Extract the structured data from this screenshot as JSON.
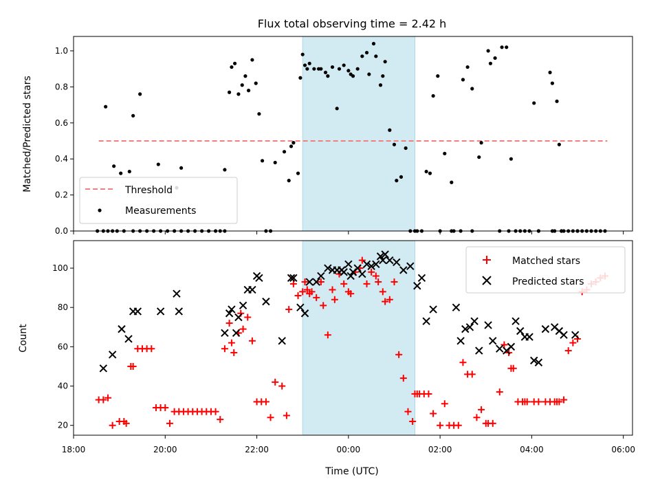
{
  "chart_data": [
    {
      "type": "scatter",
      "panel": "top",
      "title": "Flux total observing time = 2.42 h",
      "ylabel": "Matched/Predicted stars",
      "xlim": [
        18.0,
        30.2
      ],
      "ylim": [
        0.0,
        1.08
      ],
      "yticks": [
        0.0,
        0.2,
        0.4,
        0.6,
        0.8,
        1.0
      ],
      "ytick_labels": [
        "0.0",
        "0.2",
        "0.4",
        "0.6",
        "0.8",
        "1.0"
      ],
      "highlight_span": [
        23.0,
        25.45
      ],
      "highlight_color": "#add8e6",
      "legend_position": "lower-left",
      "threshold": {
        "name": "Threshold",
        "y": 0.5,
        "x": [
          18.55,
          29.65
        ],
        "color": "#f08080"
      },
      "series": [
        {
          "name": "Measurements",
          "color": "#000000",
          "x": [
            18.52,
            18.65,
            18.75,
            18.85,
            18.95,
            19.1,
            19.3,
            19.45,
            19.6,
            19.75,
            19.9,
            20.05,
            20.2,
            20.35,
            20.5,
            20.65,
            20.8,
            20.95,
            21.1,
            21.2,
            21.3,
            18.7,
            18.88,
            19.03,
            19.22,
            19.3,
            19.45,
            19.85,
            20.25,
            20.35,
            21.3,
            21.4,
            21.45,
            21.52,
            21.6,
            21.68,
            21.75,
            21.82,
            21.9,
            21.98,
            22.05,
            22.12,
            22.2,
            22.3,
            22.4,
            22.6,
            22.7,
            22.75,
            22.8,
            22.9,
            22.95,
            23.0,
            23.05,
            23.1,
            23.15,
            23.25,
            23.35,
            23.4,
            23.5,
            23.55,
            23.65,
            23.75,
            23.8,
            23.9,
            24.0,
            24.05,
            24.1,
            24.2,
            24.3,
            24.4,
            24.45,
            24.55,
            24.6,
            24.7,
            24.75,
            24.8,
            24.9,
            25.0,
            25.05,
            25.15,
            25.25,
            25.35,
            25.45,
            25.5,
            25.6,
            25.7,
            25.78,
            25.85,
            25.95,
            26.1,
            26.25,
            26.3,
            26.45,
            26.5,
            26.6,
            26.7,
            26.85,
            26.9,
            27.05,
            27.1,
            27.2,
            27.35,
            27.45,
            27.55,
            27.65,
            27.75,
            27.85,
            27.95,
            28.05,
            28.4,
            28.45,
            28.55,
            28.6,
            28.65,
            28.7,
            28.8,
            28.9,
            29.0,
            29.1,
            29.2,
            29.3,
            29.4,
            29.5,
            29.6,
            26.0,
            26.25,
            27.5,
            27.3,
            28.15,
            28.15,
            28.45,
            28.5,
            28.65,
            29.0,
            26.7
          ],
          "y": [
            0.0,
            0.0,
            0.0,
            0.0,
            0.0,
            0.0,
            0.0,
            0.0,
            0.0,
            0.0,
            0.0,
            0.0,
            0.0,
            0.0,
            0.0,
            0.0,
            0.0,
            0.0,
            0.0,
            0.0,
            0.0,
            0.69,
            0.36,
            0.32,
            0.33,
            0.64,
            0.76,
            0.37,
            0.24,
            0.35,
            0.34,
            0.77,
            0.91,
            0.93,
            0.76,
            0.81,
            0.86,
            0.78,
            0.95,
            0.82,
            0.65,
            0.39,
            0.0,
            0.0,
            0.38,
            0.44,
            0.28,
            0.47,
            0.49,
            0.32,
            0.85,
            0.98,
            0.92,
            0.9,
            0.93,
            0.9,
            0.9,
            0.9,
            0.88,
            0.86,
            0.91,
            0.68,
            0.9,
            0.92,
            0.89,
            0.87,
            0.86,
            0.9,
            0.97,
            0.99,
            0.87,
            1.04,
            0.97,
            0.81,
            0.86,
            0.94,
            0.56,
            0.48,
            0.28,
            0.3,
            0.46,
            0.0,
            0.0,
            0.0,
            0.0,
            0.33,
            0.32,
            0.75,
            0.86,
            0.43,
            0.27,
            0.0,
            0.0,
            0.84,
            0.91,
            0.79,
            0.41,
            0.49,
            1.0,
            0.93,
            0.96,
            1.02,
            1.02,
            0.4,
            0.0,
            0.0,
            0.0,
            0.0,
            0.71,
            0.88,
            0.82,
            0.72,
            0.48,
            0.0,
            0.0,
            0.0,
            0.0,
            0.0,
            0.0,
            0.0,
            0.0,
            0.0,
            0.0,
            0.0,
            0.0,
            0.0,
            0.0,
            0.0,
            0.0,
            0.0,
            0.0,
            0.0,
            0.0,
            0.0,
            0.0
          ]
        }
      ]
    },
    {
      "type": "scatter",
      "panel": "bottom",
      "xlabel": "Time (UTC)",
      "ylabel": "Count",
      "xlim": [
        18.0,
        30.2
      ],
      "ylim": [
        15,
        114
      ],
      "yticks": [
        20,
        40,
        60,
        80,
        100
      ],
      "ytick_labels": [
        "20",
        "40",
        "60",
        "80",
        "100"
      ],
      "xticks": [
        18,
        20,
        22,
        24,
        26,
        28,
        30
      ],
      "xtick_labels": [
        "18:00",
        "20:00",
        "22:00",
        "00:00",
        "02:00",
        "04:00",
        "06:00"
      ],
      "highlight_span": [
        23.0,
        25.45
      ],
      "highlight_color": "#add8e6",
      "legend_position": "top-right",
      "series": [
        {
          "name": "Matched stars",
          "marker": "plus",
          "color": "#ff0000",
          "x": [
            18.55,
            18.65,
            18.75,
            18.85,
            19.0,
            19.1,
            19.15,
            19.25,
            19.3,
            19.4,
            19.5,
            19.6,
            19.7,
            19.8,
            19.9,
            20.0,
            20.1,
            20.2,
            20.3,
            20.4,
            20.5,
            20.6,
            20.7,
            20.8,
            20.9,
            21.0,
            21.1,
            21.2,
            21.3,
            21.4,
            21.45,
            21.5,
            21.6,
            21.65,
            21.7,
            21.8,
            21.9,
            22.0,
            22.1,
            22.2,
            22.3,
            22.4,
            22.55,
            22.65,
            22.7,
            22.8,
            22.9,
            23.0,
            23.05,
            23.1,
            23.15,
            23.2,
            23.3,
            23.4,
            23.45,
            23.55,
            23.65,
            23.7,
            23.8,
            23.9,
            24.0,
            24.05,
            24.15,
            24.25,
            24.3,
            24.4,
            24.5,
            24.6,
            24.65,
            24.75,
            24.8,
            24.9,
            25.0,
            25.1,
            25.2,
            25.3,
            25.4,
            25.45,
            25.5,
            25.55,
            25.65,
            25.75,
            25.85,
            26.0,
            26.1,
            26.2,
            26.3,
            26.4,
            26.5,
            26.6,
            26.7,
            26.8,
            26.9,
            27.0,
            27.05,
            27.15,
            27.3,
            27.4,
            27.5,
            27.55,
            27.6,
            27.7,
            27.8,
            27.85,
            27.9,
            28.05,
            28.15,
            28.3,
            28.4,
            28.5,
            28.55,
            28.6,
            28.7,
            28.8,
            28.9,
            29.0,
            29.1,
            29.2,
            29.3,
            29.4,
            29.5,
            29.6
          ],
          "y": [
            33,
            33,
            34,
            20,
            22,
            22,
            21,
            50,
            50,
            59,
            59,
            59,
            59,
            29,
            29,
            29,
            21,
            27,
            27,
            27,
            27,
            27,
            27,
            27,
            27,
            27,
            27,
            23,
            59,
            72,
            62,
            57,
            67,
            77,
            69,
            75,
            63,
            32,
            32,
            32,
            24,
            42,
            40,
            25,
            79,
            92,
            86,
            88,
            93,
            89,
            87,
            88,
            85,
            93,
            81,
            66,
            89,
            84,
            97,
            92,
            88,
            87,
            98,
            100,
            104,
            92,
            98,
            96,
            93,
            88,
            83,
            84,
            93,
            56,
            44,
            27,
            22,
            36,
            36,
            36,
            36,
            36,
            26,
            20,
            31,
            20,
            20,
            20,
            52,
            46,
            46,
            24,
            28,
            21,
            21,
            21,
            37,
            61,
            57,
            49,
            49,
            32,
            32,
            32,
            32,
            32,
            32,
            32,
            32,
            32,
            32,
            32,
            33,
            58,
            62,
            64,
            88,
            89,
            92,
            93,
            95,
            96
          ],
          "_note_unused": []
        },
        {
          "name": "Predicted stars",
          "marker": "x",
          "color": "#000000",
          "x": [
            18.65,
            18.85,
            19.05,
            19.2,
            19.3,
            19.4,
            19.9,
            20.25,
            20.3,
            21.3,
            21.4,
            21.45,
            21.55,
            21.6,
            21.7,
            21.8,
            21.9,
            22.0,
            22.05,
            22.2,
            22.55,
            22.75,
            22.8,
            22.95,
            23.05,
            23.15,
            23.3,
            23.4,
            23.55,
            23.65,
            23.75,
            23.85,
            23.9,
            24.0,
            24.05,
            24.1,
            24.2,
            24.3,
            24.4,
            24.5,
            24.6,
            24.7,
            24.75,
            24.8,
            24.9,
            25.05,
            25.2,
            25.35,
            25.5,
            25.6,
            25.7,
            25.85,
            26.35,
            26.45,
            26.55,
            26.65,
            26.75,
            26.85,
            27.05,
            27.15,
            27.3,
            27.45,
            27.55,
            27.65,
            27.75,
            27.85,
            27.95,
            28.05,
            28.15,
            28.3,
            28.5,
            28.6,
            28.7,
            28.95
          ],
          "y": [
            49,
            56,
            69,
            64,
            78,
            78,
            78,
            87,
            78,
            67,
            77,
            79,
            67,
            75,
            81,
            89,
            89,
            96,
            95,
            83,
            63,
            95,
            95,
            80,
            77,
            93,
            93,
            96,
            100,
            99,
            99,
            99,
            98,
            102,
            96,
            98,
            100,
            97,
            102,
            101,
            102,
            106,
            104,
            107,
            104,
            103,
            99,
            101,
            91,
            95,
            73,
            79,
            80,
            63,
            69,
            70,
            73,
            58,
            71,
            63,
            59,
            58,
            60,
            73,
            68,
            65,
            65,
            53,
            52,
            69,
            70,
            68,
            66,
            66
          ]
        }
      ]
    }
  ]
}
